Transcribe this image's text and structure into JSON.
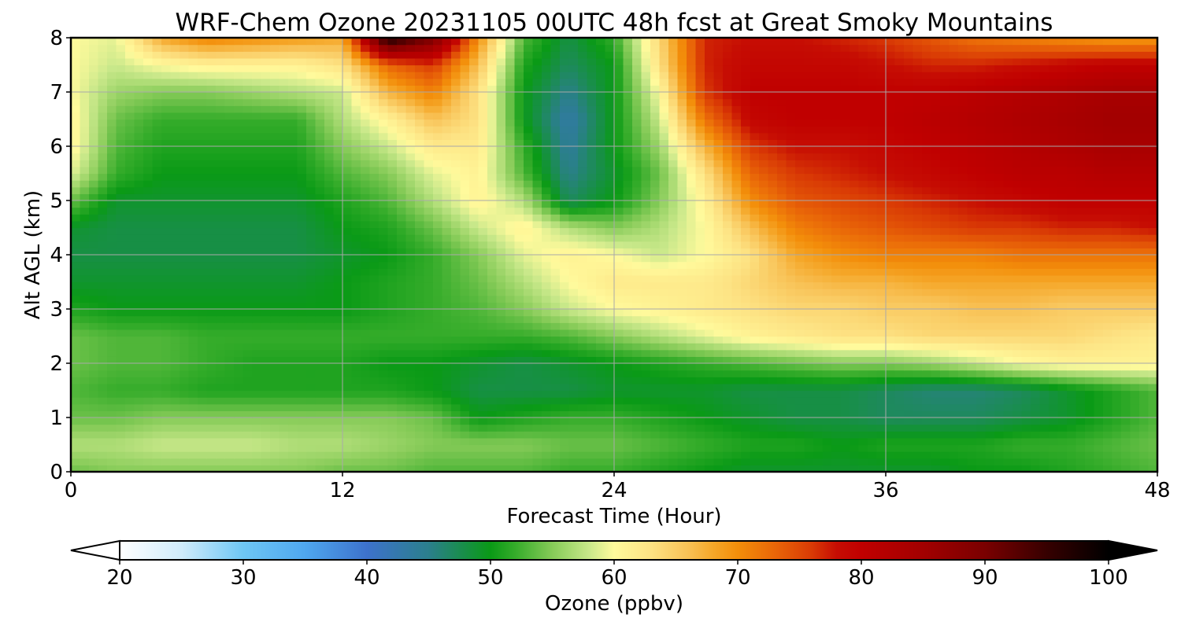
{
  "chart_data": {
    "type": "heatmap",
    "title": "WRF-Chem Ozone  20231105 00UTC 48h fcst at Great Smoky Mountains",
    "xlabel": "Forecast Time (Hour)",
    "ylabel": "Alt AGL (km)",
    "xlim": [
      0,
      48
    ],
    "ylim": [
      0,
      8
    ],
    "x_ticks": [
      "0",
      "12",
      "24",
      "36",
      "48"
    ],
    "y_ticks": [
      "0",
      "1",
      "2",
      "3",
      "4",
      "5",
      "6",
      "7",
      "8"
    ],
    "grid": true,
    "x": [
      0,
      2,
      4,
      6,
      8,
      10,
      12,
      14,
      16,
      18,
      20,
      22,
      24,
      26,
      28,
      30,
      32,
      34,
      36,
      38,
      40,
      42,
      44,
      46,
      48
    ],
    "y": [
      0,
      0.5,
      1,
      1.5,
      2,
      2.5,
      3,
      3.5,
      4,
      4.5,
      5,
      5.5,
      6,
      6.5,
      7,
      7.5,
      8
    ],
    "z": [
      [
        54,
        55,
        55,
        55,
        55,
        55,
        54,
        54,
        53,
        53,
        53,
        52,
        52,
        51,
        50,
        49,
        49,
        49,
        49,
        49,
        50,
        50,
        51,
        52,
        53
      ],
      [
        57,
        57,
        58,
        58,
        58,
        57,
        57,
        56,
        55,
        55,
        55,
        54,
        54,
        53,
        52,
        51,
        51,
        50,
        51,
        51,
        51,
        52,
        52,
        53,
        54
      ],
      [
        54,
        54,
        55,
        55,
        55,
        55,
        55,
        55,
        54,
        50,
        51,
        52,
        52,
        51,
        50,
        49,
        48,
        48,
        47,
        47,
        47,
        48,
        49,
        51,
        53
      ],
      [
        53,
        52,
        52,
        51,
        51,
        51,
        51,
        51,
        50,
        48,
        48,
        48,
        49,
        49,
        49,
        48,
        48,
        48,
        47,
        46,
        46,
        47,
        49,
        51,
        53
      ],
      [
        54,
        53,
        53,
        52,
        51,
        51,
        51,
        50,
        50,
        49,
        48,
        49,
        50,
        51,
        52,
        53,
        54,
        55,
        55,
        56,
        58,
        60,
        61,
        61,
        61
      ],
      [
        54,
        53,
        53,
        52,
        52,
        52,
        52,
        52,
        52,
        52,
        52,
        53,
        55,
        57,
        59,
        61,
        62,
        63,
        63,
        64,
        64,
        64,
        64,
        63,
        62
      ],
      [
        51,
        50,
        50,
        50,
        50,
        50,
        50,
        51,
        52,
        53,
        55,
        58,
        60,
        61,
        62,
        63,
        64,
        64,
        65,
        65,
        66,
        66,
        65,
        65,
        65
      ],
      [
        49,
        49,
        49,
        49,
        49,
        49,
        50,
        51,
        52,
        54,
        57,
        60,
        62,
        62,
        62,
        64,
        66,
        67,
        67,
        68,
        68,
        68,
        68,
        68,
        68
      ],
      [
        48,
        48,
        48,
        48,
        48,
        48,
        49,
        50,
        52,
        55,
        59,
        61,
        60,
        58,
        60,
        63,
        68,
        70,
        71,
        71,
        71,
        72,
        72,
        72,
        72
      ],
      [
        49,
        48,
        48,
        48,
        48,
        48,
        50,
        51,
        54,
        58,
        61,
        57,
        55,
        57,
        60,
        66,
        71,
        73,
        74,
        75,
        76,
        76,
        77,
        77,
        78
      ],
      [
        54,
        49,
        49,
        49,
        49,
        49,
        51,
        53,
        57,
        61,
        57,
        47,
        50,
        55,
        61,
        70,
        74,
        75,
        76,
        77,
        78,
        79,
        80,
        80,
        80
      ],
      [
        59,
        52,
        50,
        50,
        50,
        50,
        53,
        55,
        59,
        61,
        53,
        45,
        49,
        54,
        63,
        73,
        76,
        77,
        78,
        79,
        80,
        81,
        81,
        82,
        82
      ],
      [
        61,
        53,
        51,
        51,
        51,
        51,
        55,
        58,
        62,
        62,
        52,
        44,
        50,
        56,
        67,
        76,
        78,
        78,
        79,
        80,
        81,
        82,
        83,
        84,
        84
      ],
      [
        61,
        54,
        52,
        52,
        52,
        52,
        57,
        61,
        66,
        63,
        50,
        43,
        50,
        58,
        72,
        79,
        80,
        80,
        80,
        81,
        82,
        83,
        84,
        85,
        85
      ],
      [
        60,
        56,
        55,
        55,
        56,
        57,
        58,
        67,
        71,
        63,
        50,
        45,
        50,
        60,
        76,
        80,
        80,
        80,
        80,
        80,
        81,
        82,
        83,
        84,
        84
      ],
      [
        60,
        58,
        60,
        61,
        61,
        61,
        63,
        73,
        76,
        66,
        51,
        47,
        50,
        63,
        77,
        79,
        79,
        79,
        78,
        77,
        77,
        78,
        79,
        80,
        80
      ],
      [
        60,
        59,
        68,
        71,
        70,
        69,
        68,
        98,
        90,
        70,
        53,
        48,
        52,
        64,
        77,
        78,
        78,
        77,
        76,
        74,
        72,
        71,
        70,
        69,
        69
      ]
    ],
    "colorbar": {
      "label": "Ozone  (ppbv)",
      "min": 20,
      "max": 100,
      "ticks": [
        "20",
        "30",
        "40",
        "50",
        "60",
        "70",
        "80",
        "90",
        "100"
      ],
      "extend": "both",
      "stops": [
        [
          20,
          "#ffffff"
        ],
        [
          25,
          "#d0ecfb"
        ],
        [
          30,
          "#6ec6f4"
        ],
        [
          35,
          "#4fa7ef"
        ],
        [
          40,
          "#3d72cc"
        ],
        [
          45,
          "#2b7f8c"
        ],
        [
          50,
          "#0a9a16"
        ],
        [
          52,
          "#35ac2a"
        ],
        [
          55,
          "#86cb58"
        ],
        [
          58,
          "#c9e88a"
        ],
        [
          60,
          "#fffa9c"
        ],
        [
          63,
          "#fde283"
        ],
        [
          66,
          "#f8c155"
        ],
        [
          68,
          "#f5a729"
        ],
        [
          70,
          "#f38e0a"
        ],
        [
          73,
          "#e96608"
        ],
        [
          76,
          "#d93a05"
        ],
        [
          78,
          "#c60d03"
        ],
        [
          80,
          "#c00000"
        ],
        [
          85,
          "#a20000"
        ],
        [
          90,
          "#7a0000"
        ],
        [
          95,
          "#360000"
        ],
        [
          100,
          "#000000"
        ]
      ]
    }
  }
}
